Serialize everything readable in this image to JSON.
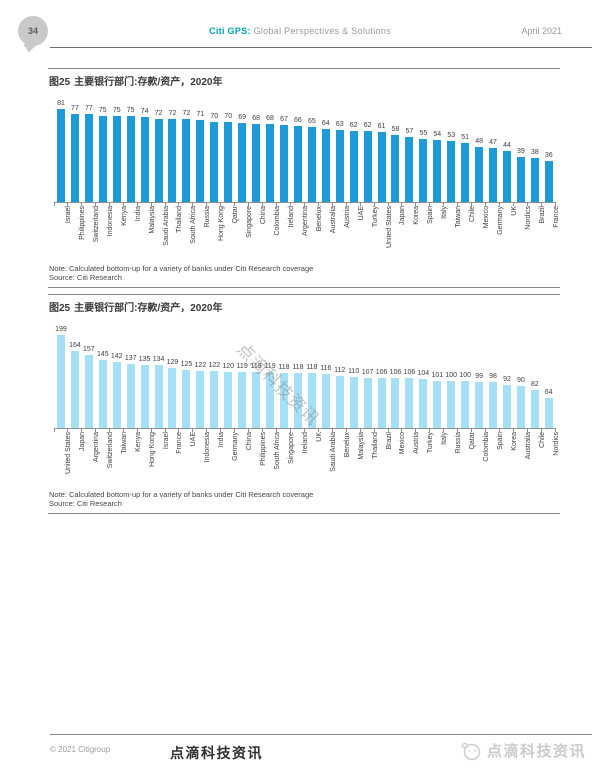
{
  "header": {
    "page_number": "34",
    "brand": "Citi GPS:",
    "brand_rest": " Global Perspectives & Solutions",
    "date": "April 2021"
  },
  "figures": [
    {
      "title_tag": "图25",
      "title": "主要银行部门:存款/资产，2020年",
      "note": "Note: Calculated bottom-up for a variety of banks under Citi Research coverage",
      "source": "Source: Citi Research"
    },
    {
      "title_tag": "图25",
      "title": "主要银行部门:存款/资产，2020年",
      "note": "Note: Calculated bottom-up for a variety of banks under Citi Research coverage",
      "source": "Source: Citi Research"
    }
  ],
  "watermark_text": "点滴科技资讯",
  "footer": {
    "copyright": "© 2021 Citigroup",
    "brand_center": "点滴科技资讯",
    "brand_right": "点滴科技资讯"
  },
  "colors": {
    "bar_dark_blue": "#1e9bd7",
    "bar_light_blue": "#a6e0f6",
    "brand_teal": "#00a3ab"
  },
  "chart_data": [
    {
      "type": "bar",
      "title": "图25 主要银行部门:存款/资产，2020年",
      "categories": [
        "Israel",
        "Philippines",
        "Switzerland",
        "Indonesia",
        "Kenya",
        "India",
        "Malaysia",
        "Saudi Arabia",
        "Thailand",
        "South Africa",
        "Russia",
        "Hong Kong",
        "Qatar",
        "Singapore",
        "China",
        "Colombia",
        "Ireland",
        "Argentina",
        "Benelux",
        "Australia",
        "Austria",
        "UAE",
        "Turkey",
        "United States",
        "Japan",
        "Korea",
        "Spain",
        "Italy",
        "Taiwan",
        "Chile",
        "Mexico",
        "Germany",
        "UK",
        "Nordics",
        "Brazil",
        "France"
      ],
      "values": [
        81,
        77,
        77,
        75,
        75,
        75,
        74,
        72,
        72,
        72,
        71,
        70,
        70,
        69,
        68,
        68,
        67,
        66,
        65,
        64,
        63,
        62,
        62,
        61,
        58,
        57,
        55,
        54,
        53,
        51,
        48,
        47,
        44,
        39,
        38,
        36
      ],
      "bar_color": "#1e9bd7",
      "data_labels": true,
      "xlabel": "",
      "ylabel": "",
      "ylim": [
        0,
        85
      ],
      "grid": false,
      "legend": false
    },
    {
      "type": "bar",
      "title": "图25 主要银行部门:存款/资产，2020年",
      "categories": [
        "United States",
        "Japan",
        "Argentina",
        "Switzerland",
        "Taiwan",
        "Kenya",
        "Hong Kong",
        "Israel",
        "France",
        "UAE",
        "Indonesia",
        "India",
        "Germany",
        "China",
        "Philippines",
        "South Africa",
        "Singapore",
        "Ireland",
        "UK",
        "Saudi Arabia",
        "Benelux",
        "Malaysia",
        "Thailand",
        "Brazil",
        "Mexico",
        "Austria",
        "Turkey",
        "Italy",
        "Russia",
        "Qatar",
        "Colombia",
        "Spain",
        "Korea",
        "Australia",
        "Chile",
        "Nordics"
      ],
      "values": [
        199,
        164,
        157,
        145,
        142,
        137,
        135,
        134,
        129,
        125,
        122,
        122,
        120,
        119,
        119,
        119,
        118,
        118,
        118,
        116,
        112,
        110,
        107,
        106,
        106,
        106,
        104,
        101,
        100,
        100,
        99,
        98,
        92,
        90,
        82,
        64
      ],
      "bar_color": "#a6e0f6",
      "data_labels": true,
      "xlabel": "",
      "ylabel": "",
      "ylim": [
        0,
        210
      ],
      "grid": false,
      "legend": false
    }
  ]
}
